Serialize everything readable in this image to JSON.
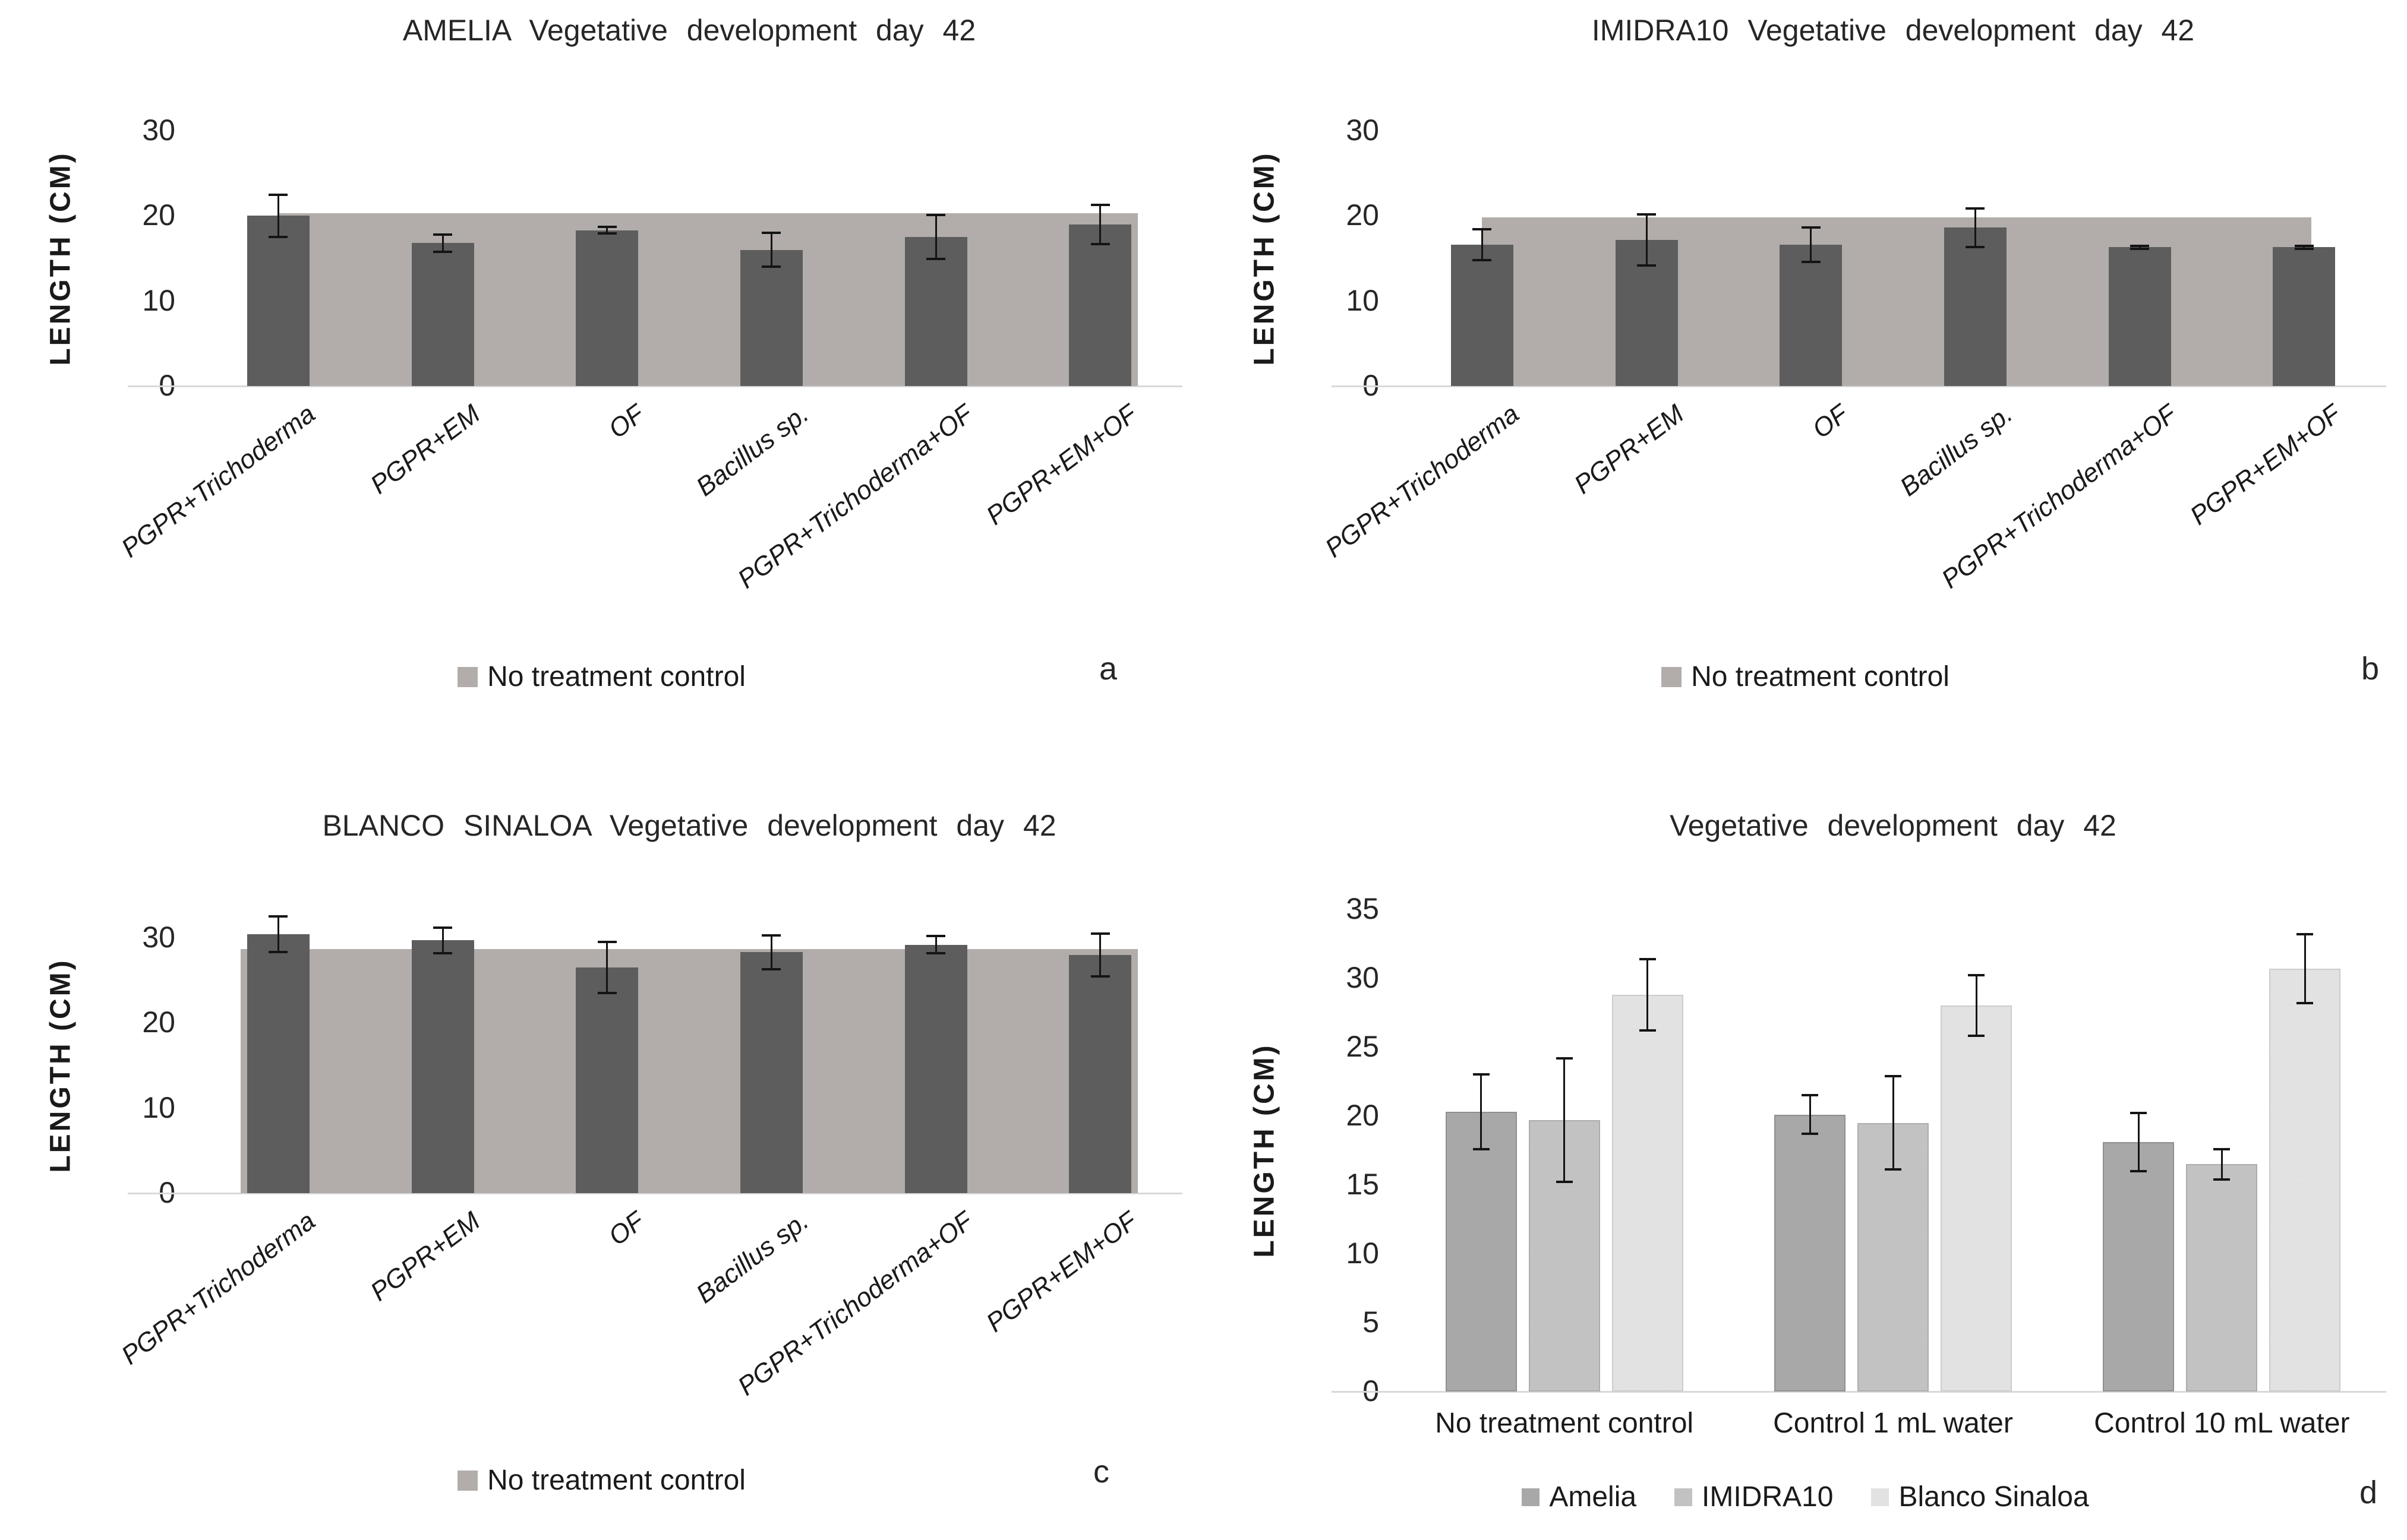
{
  "figure": {
    "background": "#ffffff",
    "error_bar_color": "#141414",
    "axis_line_color": "#d9d9d9"
  },
  "chart_data": [
    {
      "id": "a",
      "type": "bar",
      "panel_label": "a",
      "title": "AMELIA Vegetative development day 42",
      "ylabel": "LENGTH (CM)",
      "ylim": [
        0,
        30
      ],
      "yticks": [
        0,
        10,
        20,
        30
      ],
      "categories": [
        "PGPR+Trichoderma",
        "PGPR+EM",
        "OF",
        "Bacillus sp.",
        "PGPR+Trichoderma+OF",
        "PGPR+EM+OF"
      ],
      "values": [
        20.0,
        16.8,
        18.3,
        16.0,
        17.5,
        19.0
      ],
      "errors": [
        2.5,
        1.0,
        0.4,
        2.0,
        2.6,
        2.3
      ],
      "bar_color": "#5d5d5d",
      "control_band": {
        "label": "No treatment control",
        "value": 20.3,
        "color": "#b2adaa",
        "span": [
          0.083,
          0.955
        ]
      },
      "legend": [
        {
          "label": "No treatment control",
          "color": "#b2adaa"
        }
      ]
    },
    {
      "id": "b",
      "type": "bar",
      "panel_label": "b",
      "title": "IMIDRA10 Vegetative development day 42",
      "ylabel": "LENGTH (CM)",
      "ylim": [
        0,
        30
      ],
      "yticks": [
        0,
        10,
        20,
        30
      ],
      "categories": [
        "PGPR+Trichoderma",
        "PGPR+EM",
        "OF",
        "Bacillus sp.",
        "PGPR+Trichoderma+OF",
        "PGPR+EM+OF"
      ],
      "values": [
        16.6,
        17.2,
        16.6,
        18.6,
        16.3,
        16.3
      ],
      "errors": [
        1.8,
        3.0,
        2.0,
        2.3,
        0.2,
        0.2
      ],
      "bar_color": "#5d5d5d",
      "control_band": {
        "label": "No treatment control",
        "value": 19.8,
        "color": "#b2adaa",
        "span": [
          0.083,
          0.924
        ]
      },
      "legend": [
        {
          "label": "No treatment control",
          "color": "#b2adaa"
        }
      ]
    },
    {
      "id": "c",
      "type": "bar",
      "panel_label": "c",
      "title": "BLANCO SINALOA Vegetative development day 42",
      "ylabel": "LENGTH (CM)",
      "ylim": [
        0,
        30
      ],
      "yticks": [
        0,
        10,
        20,
        30
      ],
      "categories": [
        "PGPR+Trichoderma",
        "PGPR+EM",
        "OF",
        "Bacillus sp.",
        "PGPR+Trichoderma+OF",
        "PGPR+EM+OF"
      ],
      "values": [
        30.4,
        29.7,
        26.5,
        28.3,
        29.2,
        28.0
      ],
      "errors": [
        2.1,
        1.5,
        3.0,
        2.0,
        1.0,
        2.5
      ],
      "bar_color": "#5d5d5d",
      "control_band": {
        "label": "No treatment control",
        "value": 28.7,
        "color": "#b2adaa",
        "span": [
          0.045,
          0.955
        ]
      },
      "legend": [
        {
          "label": "No treatment control",
          "color": "#b2adaa"
        }
      ]
    },
    {
      "id": "d",
      "type": "grouped-bar",
      "panel_label": "d",
      "title": "Vegetative development day 42",
      "ylabel": "LENGTH (CM)",
      "ylim": [
        0,
        35
      ],
      "yticks": [
        0,
        5,
        10,
        15,
        20,
        25,
        30,
        35
      ],
      "categories": [
        "No treatment control",
        "Control 1 mL water",
        "Control 10 mL water"
      ],
      "series": [
        {
          "name": "Amelia",
          "color": "#a8a8a8",
          "edge": "#8f8f8f",
          "values": [
            20.3,
            20.1,
            18.1
          ],
          "errors": [
            2.7,
            1.4,
            2.1
          ]
        },
        {
          "name": "IMIDRA10",
          "color": "#c2c2c2",
          "edge": "#adadad",
          "values": [
            19.7,
            19.5,
            16.5
          ],
          "errors": [
            4.5,
            3.4,
            1.1
          ]
        },
        {
          "name": "Blanco Sinaloa",
          "color": "#e2e2e2",
          "edge": "#cccccc",
          "values": [
            28.8,
            28.0,
            30.7
          ],
          "errors": [
            2.6,
            2.2,
            2.5
          ]
        }
      ]
    }
  ]
}
